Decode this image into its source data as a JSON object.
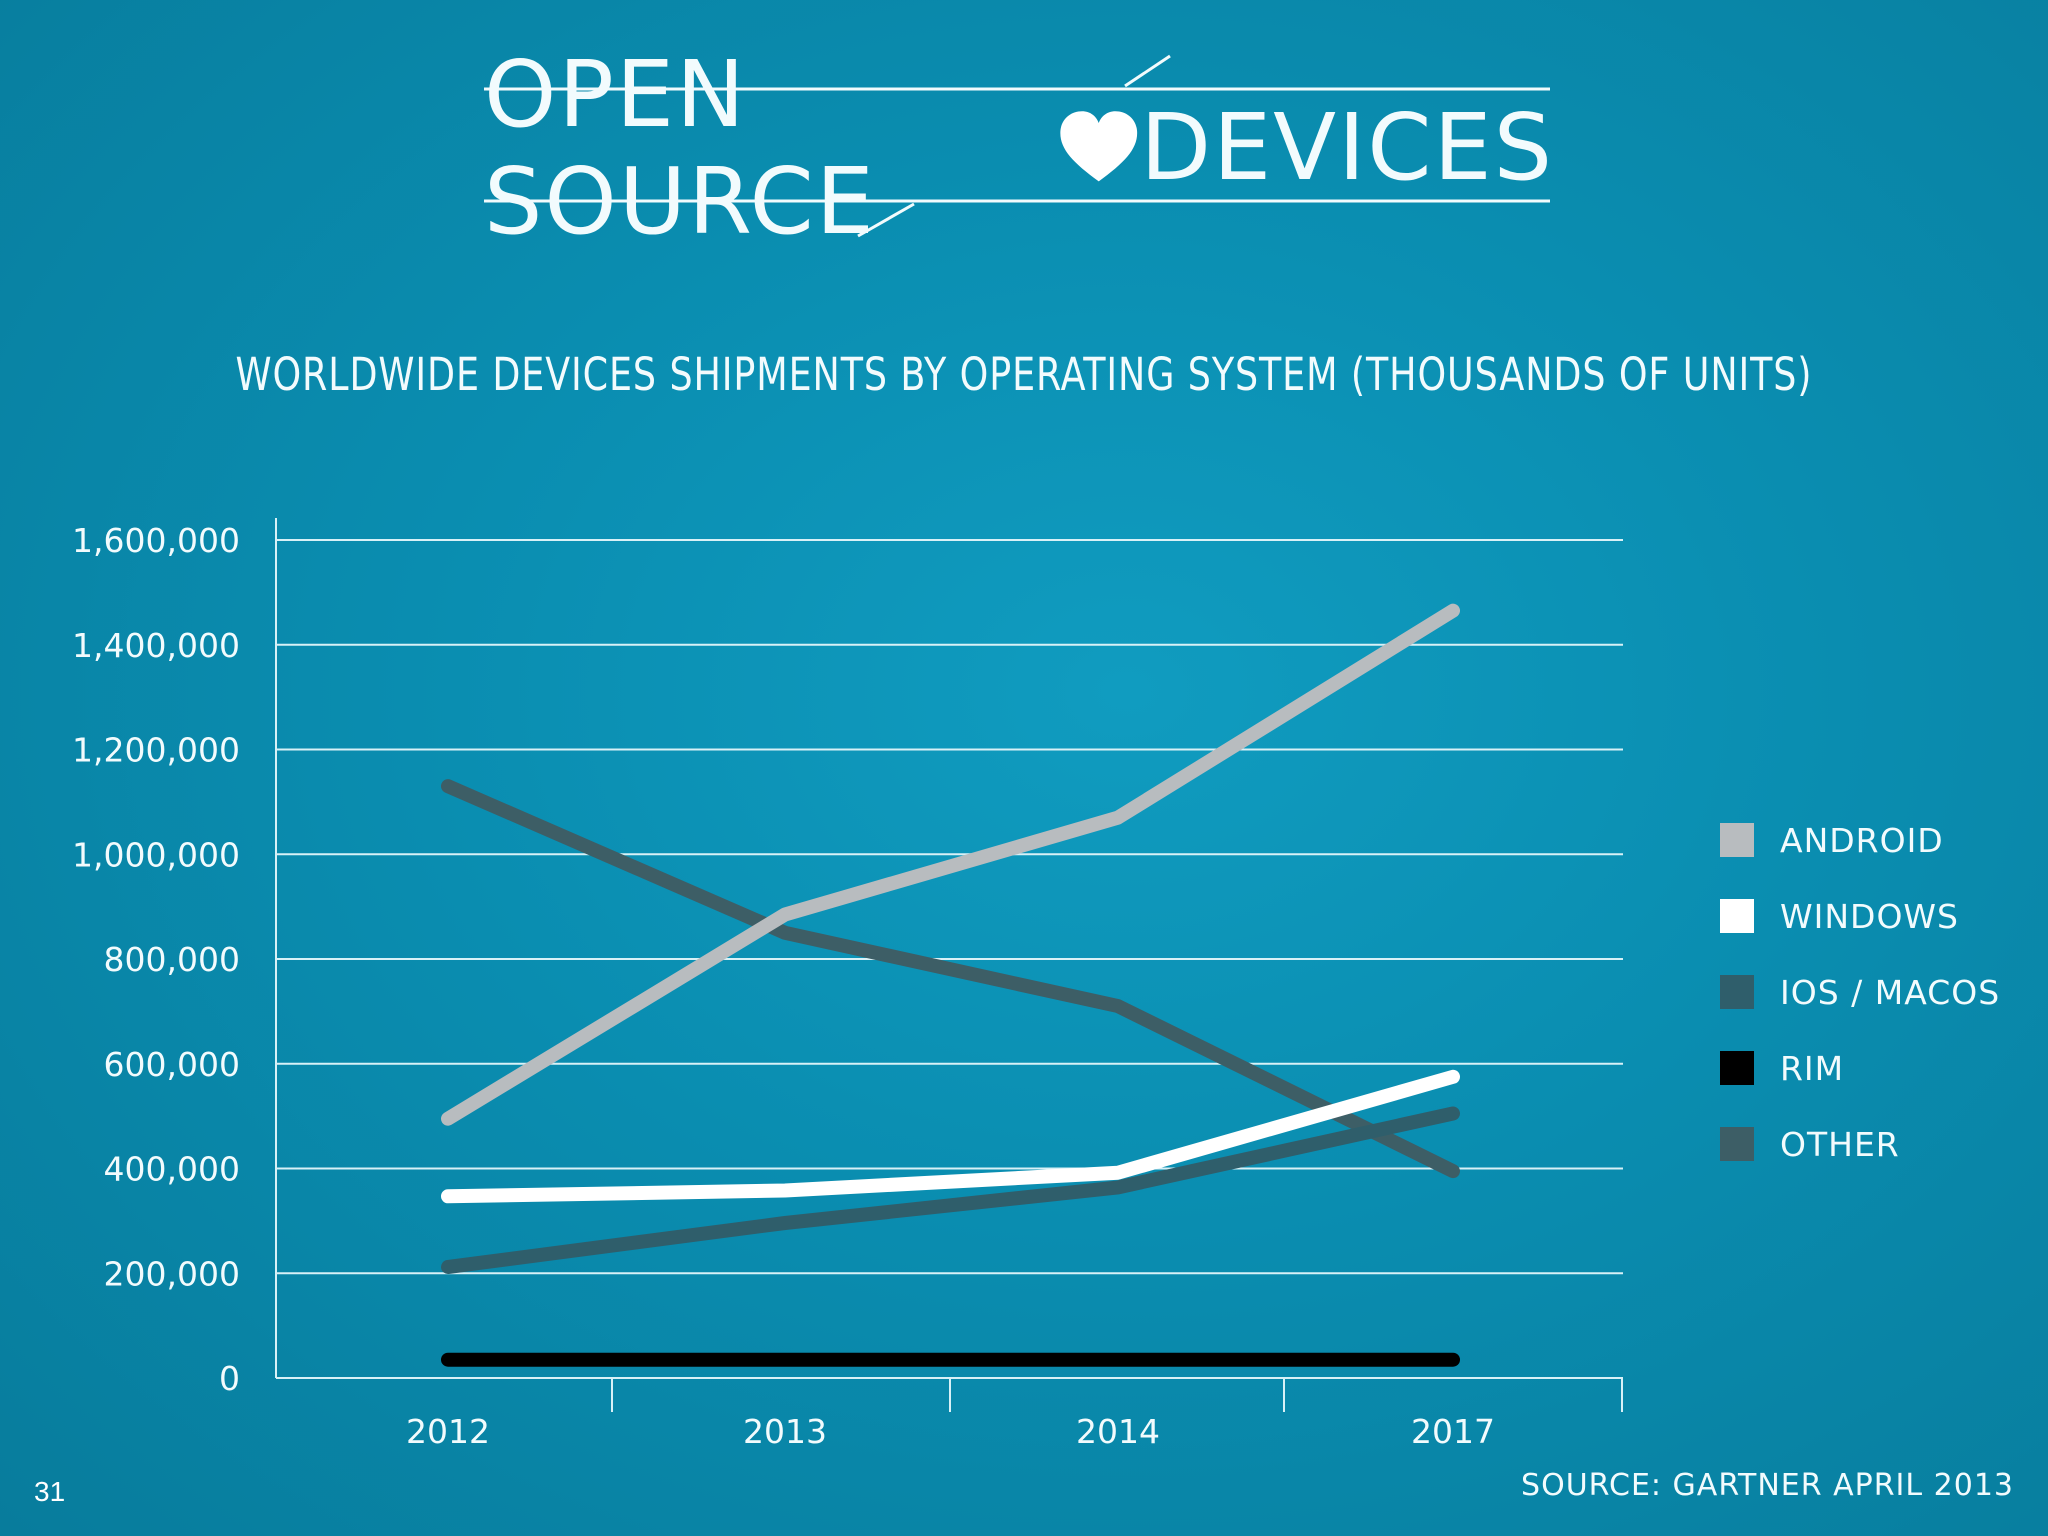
{
  "logo": {
    "left_text": "OPEN SOURCE",
    "right_text": "DEVICES",
    "heart_icon": "heart-icon"
  },
  "colors": {
    "android": "#b8bcbf",
    "windows": "#ffffff",
    "ios_macos": "#2f5e6b",
    "rim": "#000000",
    "other": "#3d5e66",
    "grid": "#d8f1f7"
  },
  "chart_data": {
    "type": "line",
    "title": "WORLDWIDE DEVICES SHIPMENTS BY OPERATING SYSTEM (THOUSANDS OF UNITS)",
    "categories": [
      "2012",
      "2013",
      "2014",
      "2017"
    ],
    "y_ticks": [
      "1,600,000",
      "1,400,000",
      "1,200,000",
      "1,000,000",
      "800,000",
      "600,000",
      "400,000",
      "200,000",
      "0"
    ],
    "ylim": [
      0,
      1600000
    ],
    "series": [
      {
        "name": "OTHER",
        "color": "#3d5e66",
        "values": [
          1130000,
          850000,
          710000,
          395000
        ]
      },
      {
        "name": "IOS / MACOS",
        "color": "#2f5e6b",
        "values": [
          212000,
          296000,
          364000,
          505000
        ]
      },
      {
        "name": "ANDROID",
        "color": "#b8bcbf",
        "values": [
          495000,
          885000,
          1070000,
          1465000
        ]
      },
      {
        "name": "WINDOWS",
        "color": "#ffffff",
        "values": [
          347000,
          358000,
          392000,
          575000
        ]
      },
      {
        "name": "RIM",
        "color": "#000000",
        "values": [
          35000,
          35000,
          35000,
          35000
        ]
      }
    ],
    "legend": [
      {
        "label": "ANDROID",
        "color": "#b8bcbf"
      },
      {
        "label": "WINDOWS",
        "color": "#ffffff"
      },
      {
        "label": "IOS / MACOS",
        "color": "#2f5e6b"
      },
      {
        "label": "RIM",
        "color": "#000000"
      },
      {
        "label": "OTHER",
        "color": "#3d5e66"
      }
    ],
    "legend_position": "right",
    "grid": true
  },
  "source": "SOURCE: GARTNER APRIL 2013",
  "page_number": "31"
}
